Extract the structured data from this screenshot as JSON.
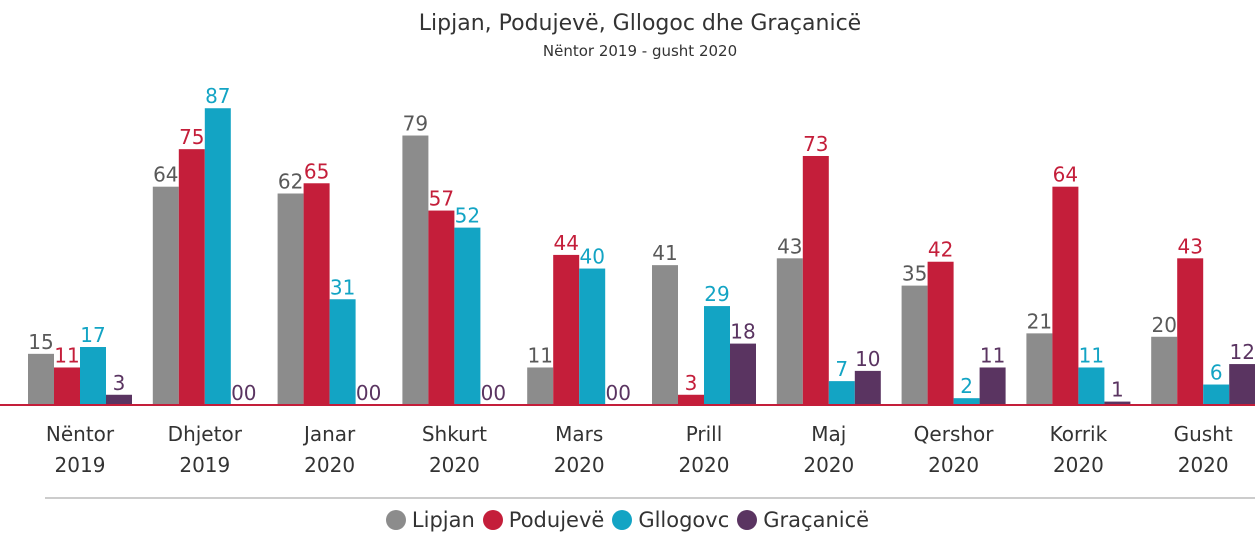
{
  "chart_data": {
    "type": "bar",
    "title": "Lipjan, Podujevë, Gllogoc dhe Graçanicë",
    "subtitle": "Nëntor 2019 - gusht 2020",
    "categories": [
      "Nëntor 2019",
      "Dhjetor 2019",
      "Janar 2020",
      "Shkurt 2020",
      "Mars 2020",
      "Prill 2020",
      "Maj 2020",
      "Qershor 2020",
      "Korrik 2020",
      "Gusht 2020"
    ],
    "series": [
      {
        "name": "Lipjan",
        "color": "#8c8c8c",
        "label_color": "#595959",
        "values": [
          15,
          64,
          62,
          79,
          11,
          41,
          43,
          35,
          21,
          20
        ]
      },
      {
        "name": "Podujevë",
        "color": "#c41e3a",
        "label_color": "#c41e3a",
        "values": [
          11,
          75,
          65,
          57,
          44,
          3,
          73,
          42,
          64,
          43
        ]
      },
      {
        "name": "Gllogovc",
        "color": "#13a4c4",
        "label_color": "#13a4c4",
        "values": [
          17,
          87,
          31,
          52,
          40,
          29,
          7,
          2,
          11,
          6
        ]
      },
      {
        "name": "Graçanicë",
        "color": "#5a3461",
        "label_color": "#5a3461",
        "values": [
          3,
          0,
          0,
          0,
          0,
          18,
          10,
          11,
          1,
          12
        ],
        "value_labels": [
          "3",
          "00",
          "00",
          "00",
          "00",
          "18",
          "10",
          "11",
          "1",
          "12"
        ]
      }
    ],
    "ylim": [
      0,
      90
    ],
    "legend": "bottom"
  }
}
